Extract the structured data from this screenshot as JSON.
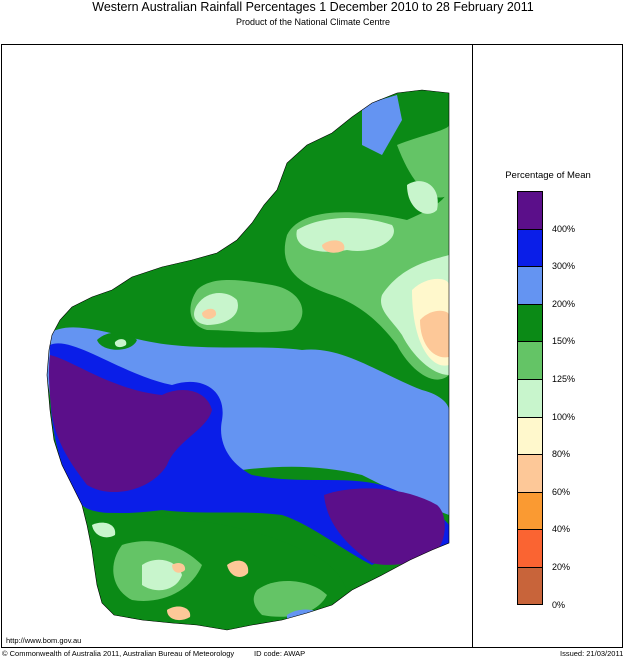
{
  "title": "Western Australian Rainfall Percentages 1 December 2010 to 28 February 2011",
  "subtitle": "Product of the National Climate Centre",
  "legend": {
    "title": "Percentage of Mean",
    "levels": [
      {
        "label": "400%",
        "color": "#5b0f8a"
      },
      {
        "label": "300%",
        "color": "#0a1ee8"
      },
      {
        "label": "200%",
        "color": "#6494f2"
      },
      {
        "label": "150%",
        "color": "#0b8a16"
      },
      {
        "label": "125%",
        "color": "#64c466"
      },
      {
        "label": "100%",
        "color": "#c8f5cc"
      },
      {
        "label": "80%",
        "color": "#fff8cc"
      },
      {
        "label": "60%",
        "color": "#fdc898"
      },
      {
        "label": "40%",
        "color": "#fa9a32"
      },
      {
        "label": "20%",
        "color": "#fa6432"
      },
      {
        "label": "0%",
        "color": "#c8643a"
      }
    ]
  },
  "footer": {
    "url": "http://www.bom.gov.au",
    "copyright": "© Commonwealth of Australia 2011, Australian Bureau of Meteorology",
    "id_code": "ID code: AWAP",
    "issued": "Issued: 21/03/2011"
  }
}
